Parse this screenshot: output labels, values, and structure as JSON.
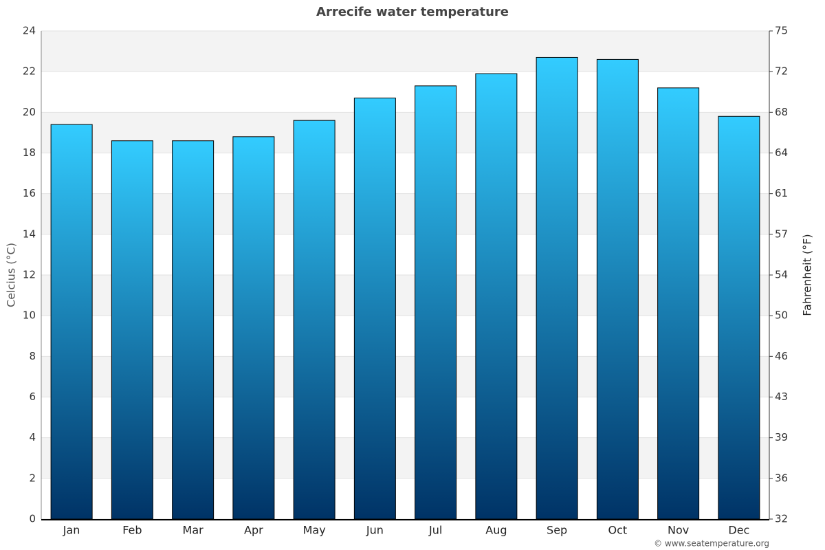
{
  "chart_data": {
    "type": "bar",
    "title": "Arrecife water temperature",
    "ylabel": "Celcius (°C)",
    "y2label": "Fahrenheit (°F)",
    "categories": [
      "Jan",
      "Feb",
      "Mar",
      "Apr",
      "May",
      "Jun",
      "Jul",
      "Aug",
      "Sep",
      "Oct",
      "Nov",
      "Dec"
    ],
    "values": [
      19.4,
      18.6,
      18.6,
      18.8,
      19.6,
      20.7,
      21.3,
      21.9,
      22.7,
      22.6,
      21.2,
      19.8
    ],
    "gradient": [
      "#33ccff",
      "#003366"
    ],
    "ylim": [
      0,
      24
    ],
    "yticks": [
      0,
      2,
      4,
      6,
      8,
      10,
      12,
      14,
      16,
      18,
      20,
      22,
      24
    ],
    "y2lim": [
      32,
      75.2
    ],
    "y2ticks": [
      32,
      {
        "value": 35.6,
        "label": "36"
      },
      {
        "value": 39.2,
        "label": "39"
      },
      {
        "value": 42.8,
        "label": "43"
      },
      {
        "value": 46.4,
        "label": "46"
      },
      50,
      {
        "value": 53.6,
        "label": "54"
      },
      {
        "value": 57.2,
        "label": "57"
      },
      {
        "value": 60.8,
        "label": "61"
      },
      {
        "value": 64.4,
        "label": "64"
      },
      68,
      {
        "value": 71.6,
        "label": "72"
      },
      {
        "value": 75.2,
        "label": "75"
      }
    ],
    "grid": true,
    "source": "© www.seatemperature.org"
  }
}
